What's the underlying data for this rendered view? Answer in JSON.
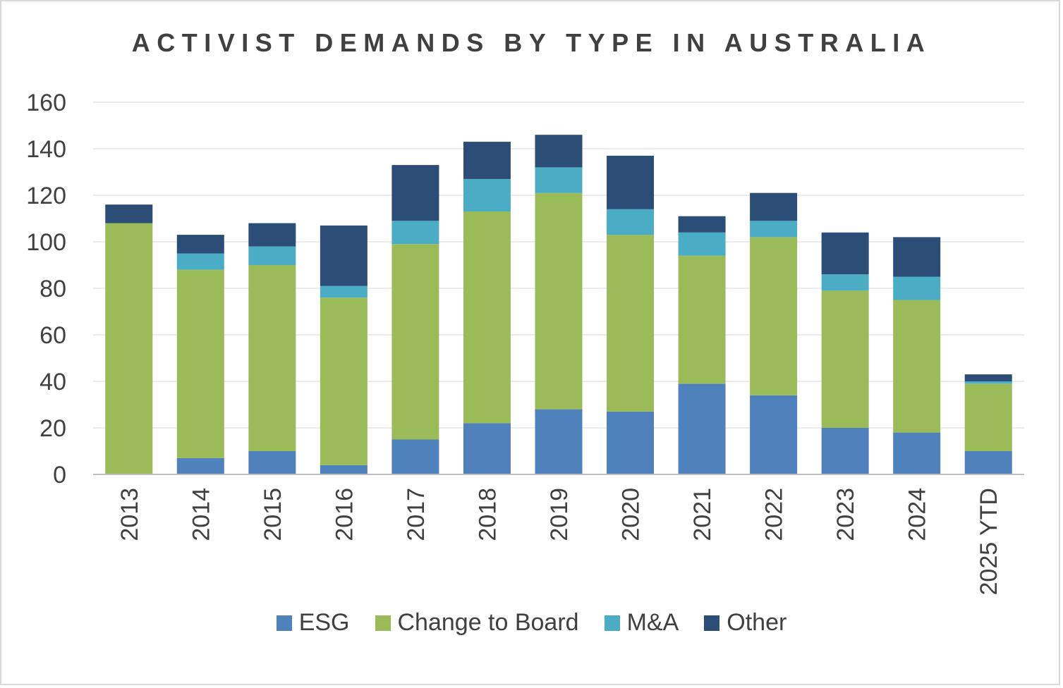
{
  "chart_data": {
    "type": "bar",
    "stacked": true,
    "title": "ACTIVIST DEMANDS BY TYPE IN AUSTRALIA",
    "xlabel": "",
    "ylabel": "",
    "ylim": [
      0,
      160
    ],
    "yticks": [
      "0",
      "20",
      "40",
      "60",
      "80",
      "100",
      "120",
      "140",
      "160"
    ],
    "grid": true,
    "legend_position": "bottom",
    "categories": [
      "2013",
      "2014",
      "2015",
      "2016",
      "2017",
      "2018",
      "2019",
      "2020",
      "2021",
      "2022",
      "2023",
      "2024",
      "2025 YTD"
    ],
    "series": [
      {
        "name": "ESG",
        "color": "#4f81bd",
        "values": [
          0,
          7,
          10,
          4,
          15,
          22,
          28,
          27,
          39,
          34,
          20,
          18,
          10
        ]
      },
      {
        "name": "Change to Board",
        "color": "#9bbb59",
        "values": [
          108,
          81,
          80,
          72,
          84,
          91,
          93,
          76,
          55,
          68,
          59,
          57,
          29
        ]
      },
      {
        "name": "M&A",
        "color": "#4bacc6",
        "values": [
          0,
          7,
          8,
          5,
          10,
          14,
          11,
          11,
          10,
          7,
          7,
          10,
          1
        ]
      },
      {
        "name": "Other",
        "color": "#2c4d75",
        "values": [
          8,
          8,
          10,
          26,
          24,
          16,
          14,
          23,
          7,
          12,
          18,
          17,
          3
        ]
      }
    ]
  }
}
